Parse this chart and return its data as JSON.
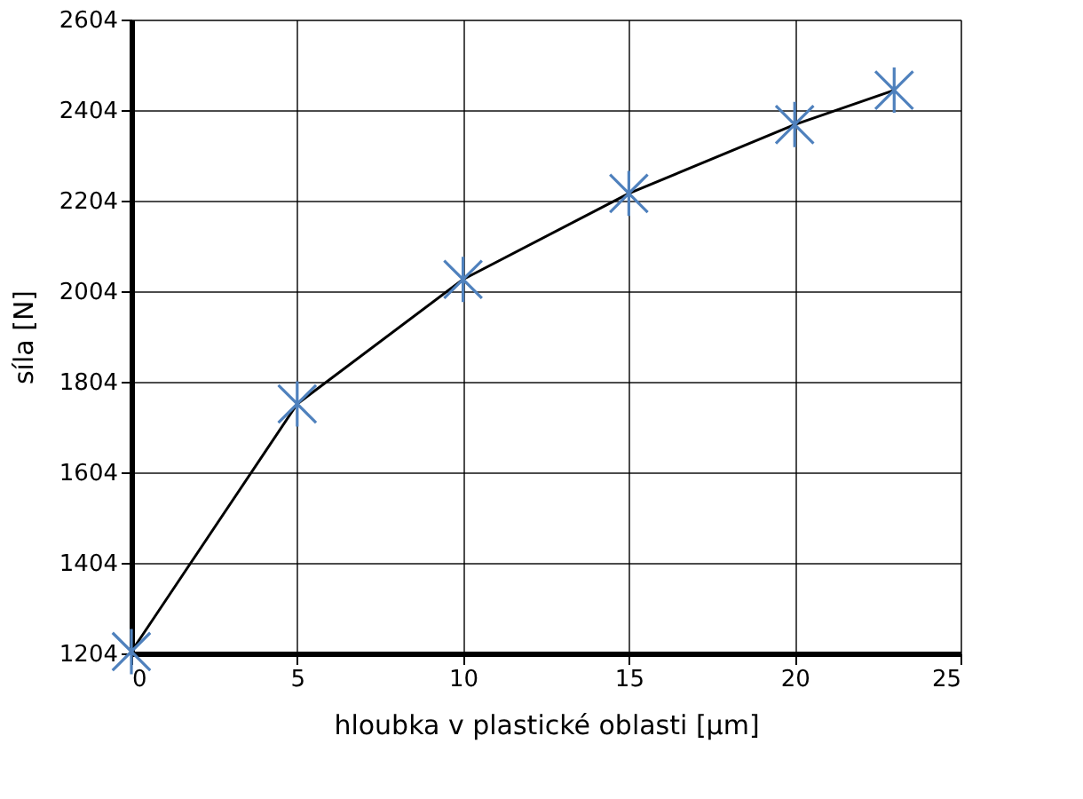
{
  "chart_data": {
    "type": "line",
    "xlabel": "hloubka v plastické oblasti [µm]",
    "ylabel": "síla [N]",
    "x": [
      0,
      5,
      10,
      15,
      20,
      23
    ],
    "series": [
      {
        "color": "#4f81bd",
        "values": [
          1208,
          1755,
          2030,
          2220,
          2372,
          2448
        ]
      }
    ],
    "xlim": [
      0,
      25
    ],
    "xticks": [
      0,
      5,
      10,
      15,
      20,
      25
    ],
    "ylim": [
      1204,
      2604
    ],
    "yticks": [
      1204,
      1404,
      1604,
      1804,
      2004,
      2204,
      2404,
      2604
    ],
    "grid": true,
    "marker": "star",
    "line_style": "solid"
  }
}
